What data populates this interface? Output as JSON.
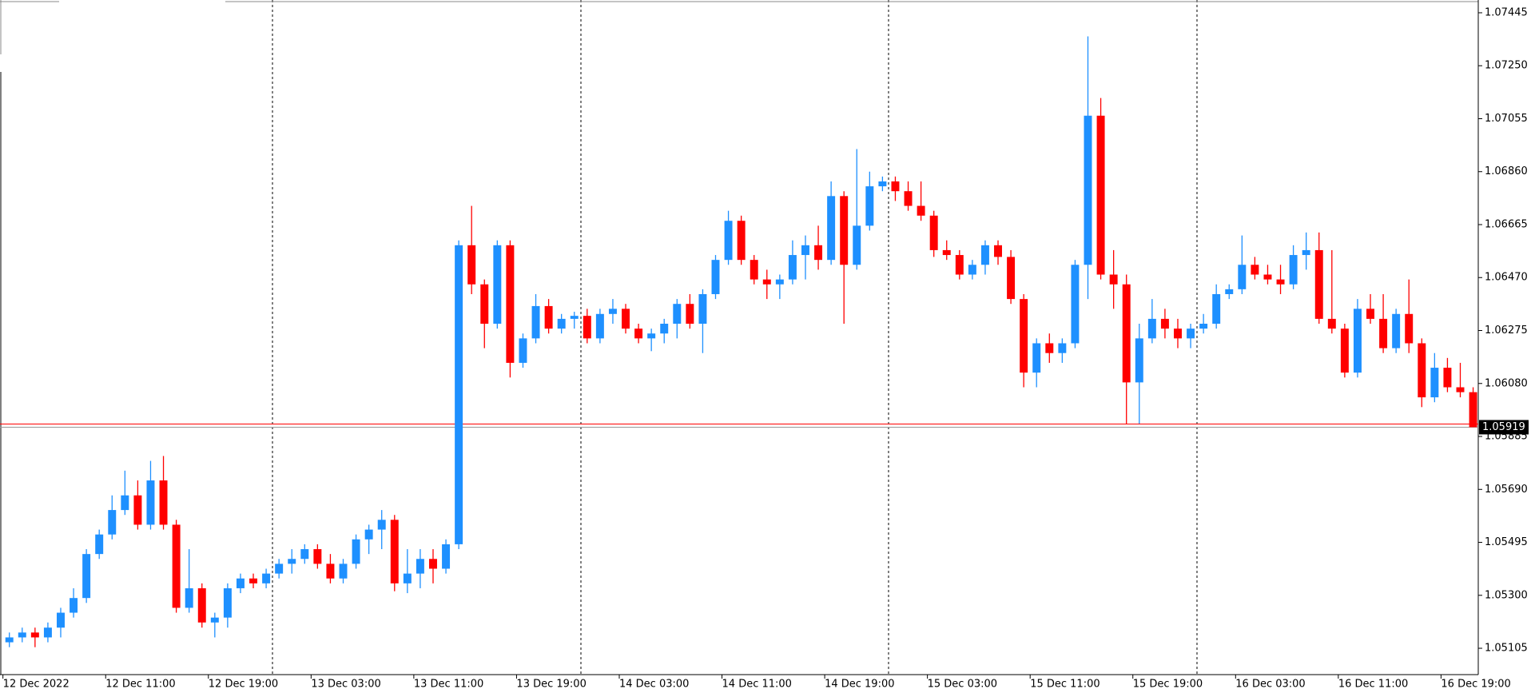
{
  "chart_data": {
    "type": "candlestick",
    "bull_color": "#1e90ff",
    "bear_color": "#ff0000",
    "ylim": [
      1.05008,
      1.07492
    ],
    "yticks": [
      1.07445,
      {
        "value": 1.0725,
        "label": "1.07250"
      },
      1.07055,
      {
        "value": 1.0686,
        "label": "1.06860"
      },
      1.06665,
      {
        "value": 1.0647,
        "label": "1.06470"
      },
      1.06275,
      {
        "value": 1.0608,
        "label": "1.06080"
      },
      1.05885,
      {
        "value": 1.0569,
        "label": "1.05690"
      },
      1.05495,
      {
        "value": 1.053,
        "label": "1.05300"
      },
      1.05105
    ],
    "current_price": 1.05919,
    "categories": [
      "12 Dec 2022",
      null,
      null,
      null,
      null,
      null,
      null,
      null,
      "12 Dec 11:00",
      null,
      null,
      null,
      null,
      null,
      null,
      null,
      "12 Dec 19:00",
      null,
      null,
      null,
      null,
      null,
      null,
      null,
      "13 Dec 03:00",
      null,
      null,
      null,
      null,
      null,
      null,
      null,
      "13 Dec 11:00",
      null,
      null,
      null,
      null,
      null,
      null,
      null,
      "13 Dec 19:00",
      null,
      null,
      null,
      null,
      null,
      null,
      null,
      "14 Dec 03:00",
      null,
      null,
      null,
      null,
      null,
      null,
      null,
      "14 Dec 11:00",
      null,
      null,
      null,
      null,
      null,
      null,
      null,
      "14 Dec 19:00",
      null,
      null,
      null,
      null,
      null,
      null,
      null,
      "15 Dec 03:00",
      null,
      null,
      null,
      null,
      null,
      null,
      null,
      "15 Dec 11:00",
      null,
      null,
      null,
      null,
      null,
      null,
      null,
      "15 Dec 19:00",
      null,
      null,
      null,
      null,
      null,
      null,
      null,
      "16 Dec 03:00",
      null,
      null,
      null,
      null,
      null,
      null,
      null,
      "16 Dec 11:00",
      null,
      null,
      null,
      null,
      null,
      null,
      null,
      "16 Dec 19:00",
      null,
      null
    ],
    "open": [
      1.05127,
      1.05145,
      1.05163,
      1.05145,
      1.05181,
      1.05236,
      1.0529,
      1.05452,
      1.05524,
      1.05614,
      1.05668,
      1.0556,
      1.05723,
      1.0556,
      1.05254,
      1.05326,
      1.052,
      1.05218,
      1.05326,
      1.05362,
      1.05344,
      1.0538,
      1.05416,
      1.05434,
      1.0547,
      1.05416,
      1.05362,
      1.05416,
      1.05506,
      1.05542,
      1.05578,
      1.05344,
      1.0538,
      1.05434,
      1.05398,
      1.05488,
      1.06589,
      1.06445,
      1.063,
      1.06589,
      1.06156,
      1.06246,
      1.06365,
      1.06282,
      1.06318,
      1.06329,
      1.06246,
      1.06336,
      1.06355,
      1.06282,
      1.06246,
      1.06264,
      1.063,
      1.06373,
      1.063,
      1.06409,
      1.06535,
      1.06679,
      1.06535,
      1.06463,
      1.06445,
      1.06463,
      1.06553,
      1.06589,
      1.06535,
      1.0677,
      1.06517,
      1.06661,
      1.06806,
      1.06824,
      1.06788,
      1.06734,
      1.06698,
      1.06571,
      1.06553,
      1.06481,
      1.06517,
      1.06589,
      1.06546,
      1.06391,
      1.0612,
      1.06228,
      1.06192,
      1.06228,
      1.06517,
      1.07066,
      1.06481,
      1.06445,
      1.06084,
      1.06246,
      1.06318,
      1.06282,
      1.06246,
      1.06282,
      1.063,
      1.06409,
      1.06427,
      1.06517,
      1.06481,
      1.06463,
      1.06445,
      1.06553,
      1.06571,
      1.06318,
      1.06282,
      1.0612,
      1.06355,
      1.06318,
      1.0621,
      1.06336,
      1.06228,
      1.06029,
      1.06138,
      1.06066,
      1.06048
    ],
    "high": [
      1.05163,
      1.05181,
      1.05181,
      1.052,
      1.05254,
      1.05326,
      1.0547,
      1.05542,
      1.05668,
      1.05759,
      1.05723,
      1.05795,
      1.05813,
      1.05578,
      1.0547,
      1.05344,
      1.05236,
      1.05344,
      1.0538,
      1.0538,
      1.05398,
      1.05434,
      1.0547,
      1.05488,
      1.05488,
      1.05452,
      1.05434,
      1.05524,
      1.0556,
      1.05614,
      1.05596,
      1.0547,
      1.0547,
      1.0547,
      1.05506,
      1.06607,
      1.06734,
      1.06463,
      1.06607,
      1.06607,
      1.06264,
      1.06409,
      1.06391,
      1.06336,
      1.06344,
      1.06355,
      1.06355,
      1.06391,
      1.06373,
      1.063,
      1.06282,
      1.06318,
      1.06391,
      1.06409,
      1.06427,
      1.06553,
      1.06716,
      1.06698,
      1.06553,
      1.06499,
      1.06481,
      1.06607,
      1.06625,
      1.06661,
      1.06824,
      1.06788,
      1.06943,
      1.0686,
      1.06842,
      1.06842,
      1.06824,
      1.06824,
      1.06716,
      1.06607,
      1.06571,
      1.06535,
      1.06607,
      1.06607,
      1.06571,
      1.06409,
      1.06246,
      1.06264,
      1.06246,
      1.06535,
      1.07358,
      1.07131,
      1.06571,
      1.06481,
      1.063,
      1.06391,
      1.06355,
      1.06318,
      1.063,
      1.06336,
      1.06445,
      1.06445,
      1.06625,
      1.06546,
      1.06517,
      1.06517,
      1.06589,
      1.06636,
      1.06636,
      1.06571,
      1.063,
      1.06391,
      1.06409,
      1.06409,
      1.06355,
      1.06463,
      1.06246,
      1.06192,
      1.06174,
      1.06156,
      1.06066
    ],
    "low": [
      1.05109,
      1.05127,
      1.05109,
      1.05127,
      1.05145,
      1.05218,
      1.05272,
      1.05434,
      1.05506,
      1.05596,
      1.05542,
      1.05542,
      1.05542,
      1.05236,
      1.05236,
      1.05181,
      1.05145,
      1.05181,
      1.05308,
      1.05326,
      1.05326,
      1.05362,
      1.0538,
      1.05416,
      1.05398,
      1.05344,
      1.05344,
      1.05398,
      1.05452,
      1.0547,
      1.05315,
      1.05308,
      1.05326,
      1.05344,
      1.0538,
      1.0547,
      1.06409,
      1.0621,
      1.06282,
      1.06102,
      1.06138,
      1.06228,
      1.06264,
      1.06264,
      1.06282,
      1.06228,
      1.06228,
      1.063,
      1.06264,
      1.06228,
      1.06199,
      1.06228,
      1.06246,
      1.06282,
      1.06192,
      1.06391,
      1.06517,
      1.06517,
      1.06445,
      1.06391,
      1.06391,
      1.06445,
      1.06463,
      1.06499,
      1.06517,
      1.063,
      1.06499,
      1.06643,
      1.06788,
      1.06752,
      1.06716,
      1.06679,
      1.06546,
      1.06535,
      1.06463,
      1.06463,
      1.06481,
      1.06517,
      1.06373,
      1.06066,
      1.06066,
      1.06156,
      1.06156,
      1.0621,
      1.06391,
      1.06463,
      1.06355,
      1.05932,
      1.05932,
      1.06228,
      1.06246,
      1.0621,
      1.0621,
      1.06264,
      1.06282,
      1.06391,
      1.06409,
      1.06463,
      1.06445,
      1.06409,
      1.06427,
      1.06499,
      1.063,
      1.06264,
      1.06102,
      1.06102,
      1.063,
      1.06192,
      1.06192,
      1.06192,
      1.05993,
      1.06011,
      1.06048,
      1.06029,
      1.05919
    ],
    "close": [
      1.05145,
      1.05163,
      1.05145,
      1.05181,
      1.05236,
      1.0529,
      1.05452,
      1.05524,
      1.05614,
      1.05668,
      1.0556,
      1.05723,
      1.0556,
      1.05254,
      1.05326,
      1.052,
      1.05218,
      1.05326,
      1.05362,
      1.05344,
      1.0538,
      1.05416,
      1.05434,
      1.0547,
      1.05416,
      1.05362,
      1.05416,
      1.05506,
      1.05542,
      1.05578,
      1.05344,
      1.0538,
      1.05434,
      1.05398,
      1.05488,
      1.06589,
      1.06445,
      1.063,
      1.06589,
      1.06156,
      1.06246,
      1.06365,
      1.06282,
      1.06318,
      1.06329,
      1.06246,
      1.06336,
      1.06355,
      1.06282,
      1.06246,
      1.06264,
      1.063,
      1.06373,
      1.063,
      1.06409,
      1.06535,
      1.06679,
      1.06535,
      1.06463,
      1.06445,
      1.06463,
      1.06553,
      1.06589,
      1.06535,
      1.0677,
      1.06517,
      1.06661,
      1.06806,
      1.06824,
      1.06788,
      1.06734,
      1.06698,
      1.06571,
      1.06553,
      1.06481,
      1.06517,
      1.06589,
      1.06546,
      1.06391,
      1.0612,
      1.06228,
      1.06192,
      1.06228,
      1.06517,
      1.07066,
      1.06481,
      1.06445,
      1.06084,
      1.06246,
      1.06318,
      1.06282,
      1.06246,
      1.06282,
      1.063,
      1.06409,
      1.06427,
      1.06517,
      1.06481,
      1.06463,
      1.06445,
      1.06553,
      1.06571,
      1.06318,
      1.06282,
      1.0612,
      1.06355,
      1.06318,
      1.0621,
      1.06336,
      1.06228,
      1.06029,
      1.06138,
      1.06066,
      1.06048,
      1.05919
    ]
  }
}
